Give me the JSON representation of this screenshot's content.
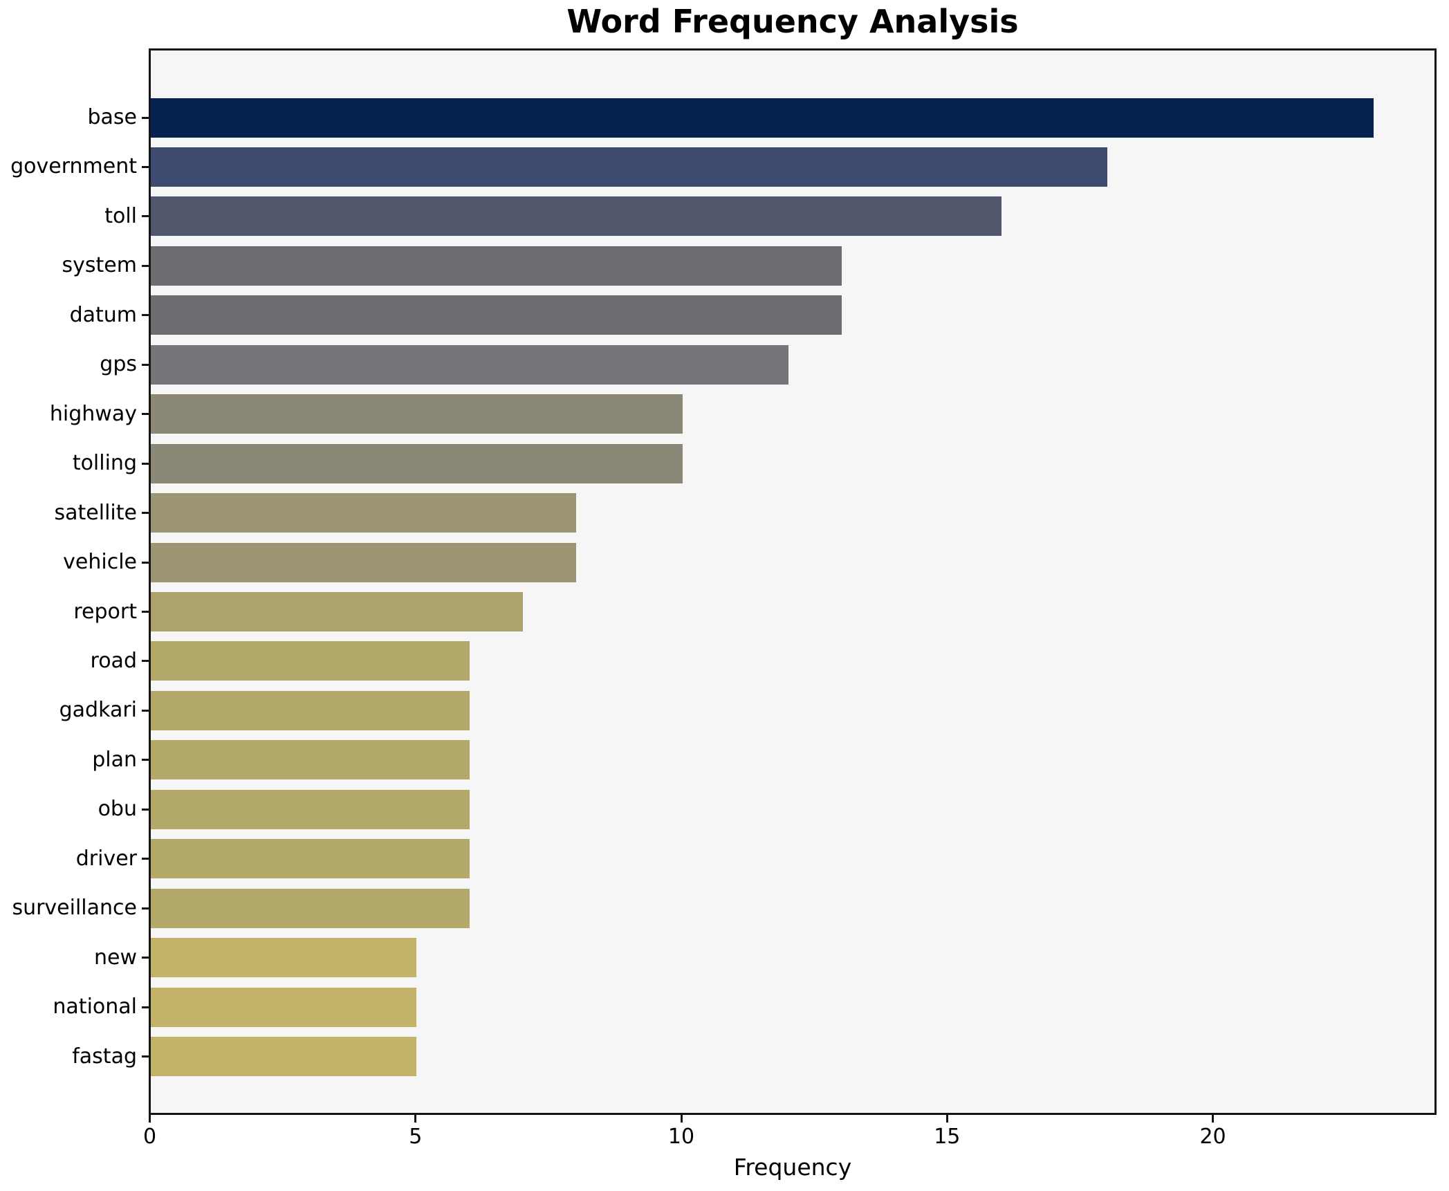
{
  "figure": {
    "background": "#ffffff"
  },
  "chart_data": {
    "type": "bar",
    "orientation": "horizontal",
    "title": "Word Frequency Analysis",
    "xlabel": "Frequency",
    "ylabel": "",
    "categories": [
      "base",
      "government",
      "toll",
      "system",
      "datum",
      "gps",
      "highway",
      "tolling",
      "satellite",
      "vehicle",
      "report",
      "road",
      "gadkari",
      "plan",
      "obu",
      "driver",
      "surveillance",
      "new",
      "national",
      "fastag"
    ],
    "values": [
      23,
      18,
      16,
      13,
      13,
      12,
      10,
      10,
      8,
      8,
      7,
      6,
      6,
      6,
      6,
      6,
      6,
      5,
      5,
      5
    ],
    "bar_colors": [
      "#05234f",
      "#3e4a6f",
      "#51576c",
      "#6c6d71",
      "#6c6d71",
      "#76767a",
      "#8b8877",
      "#8b8877",
      "#9c9675",
      "#9c9675",
      "#aba26c",
      "#b3a96a",
      "#b3a96a",
      "#b3a96a",
      "#b3a96a",
      "#b3a96a",
      "#b3a96a",
      "#c2b368",
      "#c2b368",
      "#c2b368"
    ],
    "x_ticks": [
      0,
      5,
      10,
      15,
      20
    ],
    "xlim": [
      0,
      24.15
    ],
    "grid": false,
    "legend": null,
    "colormap": "cividis",
    "plot_background": "#f6f6f7",
    "axes_border_color": "#141414",
    "text_color": "#000000"
  }
}
